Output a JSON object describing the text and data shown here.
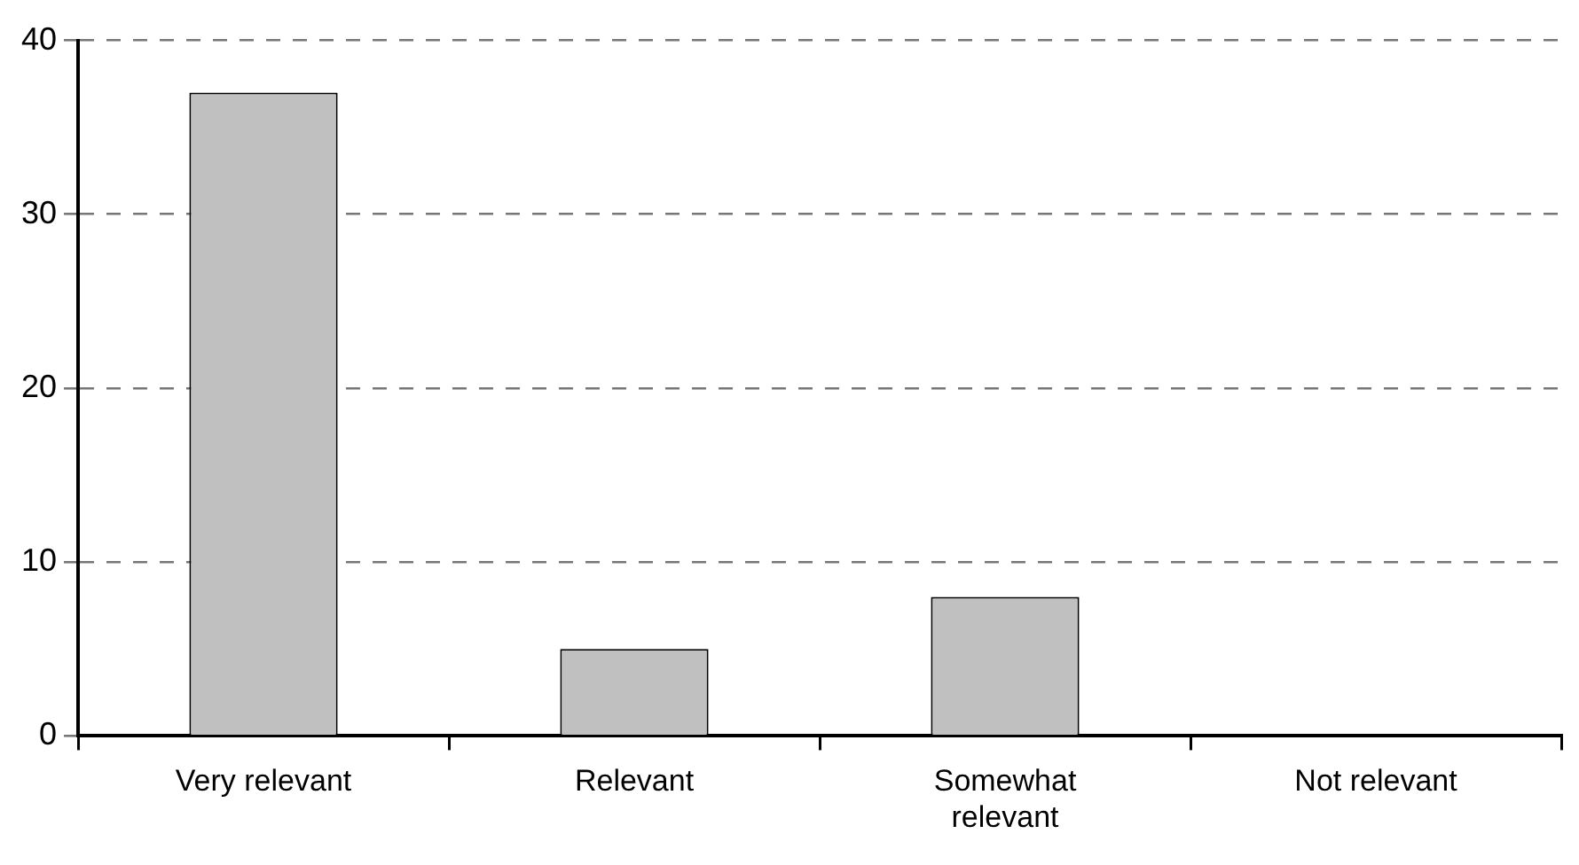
{
  "chart_data": {
    "type": "bar",
    "categories": [
      "Very relevant",
      "Relevant",
      "Somewhat relevant",
      "Not relevant"
    ],
    "values": [
      37,
      5,
      8,
      0
    ],
    "color": "#c0c0c0",
    "ylim": [
      0,
      40
    ],
    "yticks": [
      0,
      10,
      20,
      30,
      40
    ],
    "grid": "y",
    "legend": false
  }
}
